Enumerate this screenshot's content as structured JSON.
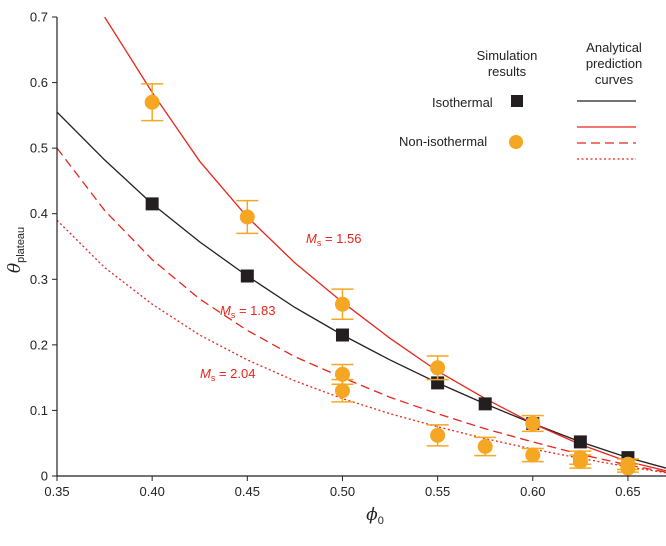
{
  "chart_data": {
    "type": "scatter",
    "xlabel": {
      "symbol": "ϕ",
      "sub": "0"
    },
    "ylabel": {
      "symbol": "θ",
      "sub": "plateau"
    },
    "xlim": [
      0.35,
      0.67
    ],
    "ylim": [
      0,
      0.7
    ],
    "x_ticks": [
      "0.35",
      "0.40",
      "0.45",
      "0.50",
      "0.55",
      "0.60",
      "0.65"
    ],
    "y_ticks": [
      "0",
      "0.1",
      "0.2",
      "0.3",
      "0.4",
      "0.5",
      "0.6",
      "0.7"
    ],
    "legend": {
      "sim_header_1": "Simulation",
      "sim_header_2": "results",
      "ana_header_1": "Analytical",
      "ana_header_2": "prediction",
      "ana_header_3": "curves",
      "isothermal": "Isothermal",
      "non_isothermal": "Non-isothermal"
    },
    "annotations": [
      {
        "symbol": "M",
        "sub": "s",
        "text": " = 1.56"
      },
      {
        "symbol": "M",
        "sub": "s",
        "text": " = 1.83"
      },
      {
        "symbol": "M",
        "sub": "s",
        "text": " = 2.04"
      }
    ],
    "series": [
      {
        "name": "Isothermal",
        "kind": "points",
        "marker": "square",
        "color": "#231f20",
        "x": [
          0.4,
          0.45,
          0.5,
          0.55,
          0.575,
          0.6,
          0.625,
          0.65
        ],
        "y": [
          0.415,
          0.305,
          0.215,
          0.142,
          0.11,
          0.08,
          0.052,
          0.028
        ]
      },
      {
        "name": "Non-isothermal",
        "kind": "points",
        "marker": "circle",
        "color": "#f5a623",
        "x": [
          0.4,
          0.45,
          0.5,
          0.5,
          0.5,
          0.55,
          0.55,
          0.575,
          0.6,
          0.6,
          0.625,
          0.625,
          0.65,
          0.65
        ],
        "y": [
          0.57,
          0.395,
          0.262,
          0.155,
          0.13,
          0.165,
          0.062,
          0.045,
          0.08,
          0.032,
          0.028,
          0.022,
          0.018,
          0.012
        ],
        "err": [
          0.028,
          0.025,
          0.023,
          0.015,
          0.017,
          0.018,
          0.016,
          0.014,
          0.012,
          0.01,
          0.01,
          0.01,
          0.008,
          0.006
        ]
      },
      {
        "name": "Isothermal",
        "kind": "curve",
        "color": "#231f20",
        "dash": "solid",
        "x": [
          0.35,
          0.375,
          0.4,
          0.425,
          0.45,
          0.475,
          0.5,
          0.525,
          0.55,
          0.575,
          0.6,
          0.625,
          0.65,
          0.67
        ],
        "y": [
          0.555,
          0.482,
          0.415,
          0.357,
          0.305,
          0.257,
          0.215,
          0.177,
          0.142,
          0.11,
          0.08,
          0.052,
          0.028,
          0.012
        ]
      },
      {
        "name": "Ms = 1.56",
        "kind": "curve",
        "color": "#e8251b",
        "dash": "solid",
        "x": [
          0.375,
          0.4,
          0.425,
          0.45,
          0.475,
          0.5,
          0.525,
          0.55,
          0.575,
          0.6,
          0.625,
          0.65,
          0.67
        ],
        "y": [
          0.7,
          0.585,
          0.48,
          0.395,
          0.325,
          0.265,
          0.21,
          0.16,
          0.118,
          0.08,
          0.048,
          0.022,
          0.008
        ]
      },
      {
        "name": "Ms = 1.83",
        "kind": "curve",
        "color": "#e8251b",
        "dash": "dashed",
        "x": [
          0.35,
          0.375,
          0.4,
          0.425,
          0.45,
          0.475,
          0.5,
          0.525,
          0.55,
          0.575,
          0.6,
          0.625,
          0.65,
          0.67
        ],
        "y": [
          0.5,
          0.405,
          0.33,
          0.27,
          0.222,
          0.182,
          0.15,
          0.12,
          0.095,
          0.072,
          0.052,
          0.033,
          0.017,
          0.006
        ]
      },
      {
        "name": "Ms = 2.04",
        "kind": "curve",
        "color": "#e8251b",
        "dash": "dotted",
        "x": [
          0.35,
          0.375,
          0.4,
          0.425,
          0.45,
          0.475,
          0.5,
          0.525,
          0.55,
          0.575,
          0.6,
          0.625,
          0.65,
          0.67
        ],
        "y": [
          0.39,
          0.318,
          0.262,
          0.215,
          0.177,
          0.145,
          0.118,
          0.095,
          0.075,
          0.057,
          0.041,
          0.027,
          0.014,
          0.005
        ]
      }
    ]
  }
}
